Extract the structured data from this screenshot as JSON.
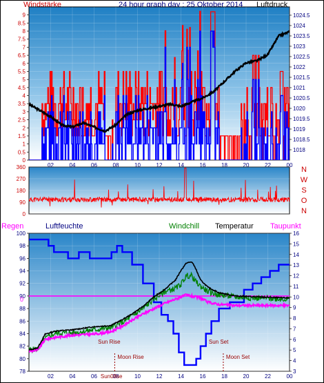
{
  "title": "24 hour graph day : 25 Oktober 2014",
  "colors": {
    "wind": "#ff0000",
    "gust": "#0000ff",
    "pressure": "#000000",
    "direction": "#ff0000",
    "humidity": "#0000ff",
    "windchill": "#008000",
    "temperature": "#000000",
    "dewpoint": "#ff00ff",
    "rain": "#ff00ff",
    "label_red": "#cc0000",
    "axis_blue": "#000080"
  },
  "chart_data": [
    {
      "type": "line",
      "name": "wind-pressure",
      "left_label": "Windstärke",
      "right_label": "Luftdruck",
      "y_left": {
        "min": 0,
        "max": 9.5,
        "ticks": [
          "0",
          "0.5",
          "1",
          "1.5",
          "2",
          "2.5",
          "3",
          "3.5",
          "4",
          "4.5",
          "5",
          "5.5",
          "6",
          "6.5",
          "7",
          "7.5",
          "8",
          "8.5",
          "9"
        ]
      },
      "y_right": {
        "min": 1017.5,
        "max": 1024.9,
        "ticks": [
          "1018",
          "1018.5",
          "1019",
          "1019.5",
          "1020",
          "1020.5",
          "1021",
          "1021.5",
          "1022",
          "1022.5",
          "1023",
          "1023.5",
          "1024",
          "1024.5"
        ]
      },
      "x": {
        "min": 0,
        "max": 24,
        "ticks": [
          "02",
          "04",
          "06",
          "08",
          "10",
          "12",
          "14",
          "16",
          "18",
          "20",
          "22",
          "00"
        ]
      },
      "pressure": [
        [
          0,
          1020.2
        ],
        [
          1,
          1019.9
        ],
        [
          2,
          1019.6
        ],
        [
          3,
          1019.2
        ],
        [
          4,
          1019.1
        ],
        [
          5,
          1019.3
        ],
        [
          6,
          1019.1
        ],
        [
          7,
          1018.9
        ],
        [
          8,
          1019.2
        ],
        [
          9,
          1019.7
        ],
        [
          10,
          1019.9
        ],
        [
          11,
          1020.0
        ],
        [
          12,
          1020.1
        ],
        [
          13,
          1020.2
        ],
        [
          14,
          1020.1
        ],
        [
          15,
          1020.3
        ],
        [
          16,
          1020.5
        ],
        [
          17,
          1020.8
        ],
        [
          18,
          1021.3
        ],
        [
          19,
          1021.8
        ],
        [
          20,
          1022.2
        ],
        [
          21,
          1022.3
        ],
        [
          22,
          1022.6
        ],
        [
          23,
          1023.5
        ],
        [
          24,
          1023.7
        ]
      ]
    },
    {
      "type": "scatter",
      "name": "wind-direction",
      "right_labels": [
        "N",
        "W",
        "S",
        "O",
        "N"
      ],
      "y": {
        "min": 0,
        "max": 360,
        "ticks": [
          "0",
          "90",
          "180",
          "270",
          "360"
        ]
      },
      "x": {
        "min": 0,
        "max": 24
      },
      "typical_direction": 110
    },
    {
      "type": "line",
      "name": "temperature-humidity",
      "labels": {
        "rain": "Regen",
        "humidity": "Luftfeuchte",
        "windchill": "Windchill",
        "temperature": "Temperatur",
        "dewpoint": "Taupunkt"
      },
      "y_left": {
        "min": 78,
        "max": 100,
        "ticks": [
          "78",
          "80",
          "82",
          "84",
          "86",
          "88",
          "90",
          "92",
          "94",
          "96",
          "98",
          "100"
        ]
      },
      "y_right": {
        "min": 3,
        "max": 16,
        "ticks": [
          "3",
          "4",
          "5",
          "6",
          "7",
          "8",
          "9",
          "10",
          "11",
          "12",
          "13",
          "14",
          "15",
          "16"
        ]
      },
      "rain_axis_label": "0",
      "x": {
        "min": 0,
        "max": 24,
        "ticks": [
          "02",
          "04",
          "06",
          "08",
          "10",
          "12",
          "14",
          "16",
          "18",
          "20",
          "22",
          "00"
        ]
      },
      "events": {
        "sun_rise": {
          "label": "Sun Rise",
          "hour": 7.5
        },
        "moon_rise": {
          "label": "Moon Rise",
          "hour": 7.9
        },
        "sun_set": {
          "label": "Sun Set",
          "hour": 17.2
        },
        "moon_set": {
          "label": "Moon Set",
          "hour": 17.9
        },
        "sun_label_short": "Sun08se"
      },
      "humidity": [
        [
          0,
          99
        ],
        [
          1.7,
          99
        ],
        [
          1.8,
          98
        ],
        [
          2.3,
          97
        ],
        [
          3.5,
          97
        ],
        [
          3.6,
          96
        ],
        [
          4.5,
          96
        ],
        [
          4.6,
          97
        ],
        [
          5.5,
          97
        ],
        [
          5.6,
          96
        ],
        [
          7.5,
          96
        ],
        [
          7.6,
          97
        ],
        [
          8,
          97
        ],
        [
          8.1,
          98
        ],
        [
          8.5,
          98
        ],
        [
          8.6,
          97
        ],
        [
          9.5,
          95
        ],
        [
          10.5,
          92
        ],
        [
          11.5,
          89
        ],
        [
          12.2,
          87
        ],
        [
          12.8,
          86
        ],
        [
          13.3,
          84
        ],
        [
          13.8,
          81
        ],
        [
          14.3,
          79
        ],
        [
          15,
          79
        ],
        [
          15.4,
          80
        ],
        [
          15.8,
          82
        ],
        [
          16.3,
          84
        ],
        [
          16.8,
          86
        ],
        [
          17.5,
          88
        ],
        [
          18.5,
          89
        ],
        [
          19.2,
          89
        ],
        [
          19.8,
          91
        ],
        [
          20.6,
          92
        ],
        [
          21.4,
          93
        ],
        [
          22.2,
          94
        ],
        [
          23,
          95
        ],
        [
          24,
          95
        ]
      ],
      "temperature": [
        [
          0,
          5.0
        ],
        [
          0.8,
          5.2
        ],
        [
          1.5,
          6.5
        ],
        [
          2.5,
          6.8
        ],
        [
          4,
          6.9
        ],
        [
          6,
          7.2
        ],
        [
          7.5,
          7.3
        ],
        [
          8.5,
          7.8
        ],
        [
          9.5,
          8.4
        ],
        [
          10.5,
          9.1
        ],
        [
          11.5,
          10.0
        ],
        [
          12.5,
          10.7
        ],
        [
          13.5,
          11.6
        ],
        [
          14,
          12.5
        ],
        [
          14.5,
          13.2
        ],
        [
          15,
          13.3
        ],
        [
          15.3,
          12.8
        ],
        [
          15.8,
          11.6
        ],
        [
          16.5,
          10.9
        ],
        [
          17.5,
          10.4
        ],
        [
          19,
          10.1
        ],
        [
          21,
          10.0
        ],
        [
          24,
          9.9
        ]
      ],
      "windchill": [
        [
          0,
          5.0
        ],
        [
          0.8,
          5.1
        ],
        [
          1.5,
          6.1
        ],
        [
          2.5,
          6.6
        ],
        [
          4,
          6.6
        ],
        [
          6,
          6.9
        ],
        [
          7.5,
          7.1
        ],
        [
          8.5,
          7.5
        ],
        [
          9.5,
          8.2
        ],
        [
          10.5,
          8.9
        ],
        [
          11.5,
          9.8
        ],
        [
          12.5,
          10.5
        ],
        [
          13.5,
          10.8
        ],
        [
          14,
          11.2
        ],
        [
          14.5,
          12.0
        ],
        [
          15,
          12.0
        ],
        [
          15.3,
          11.5
        ],
        [
          15.8,
          11.0
        ],
        [
          16.5,
          10.5
        ],
        [
          17.5,
          10.2
        ],
        [
          19,
          10.0
        ],
        [
          21,
          9.9
        ],
        [
          24,
          9.8
        ]
      ],
      "dewpoint": [
        [
          0,
          4.9
        ],
        [
          0.8,
          5.0
        ],
        [
          1.5,
          6.0
        ],
        [
          2.5,
          6.2
        ],
        [
          4,
          6.4
        ],
        [
          6,
          6.5
        ],
        [
          7.5,
          6.7
        ],
        [
          8.5,
          7.2
        ],
        [
          9.5,
          7.8
        ],
        [
          10.5,
          8.4
        ],
        [
          11.5,
          8.9
        ],
        [
          12.5,
          9.4
        ],
        [
          13.5,
          9.8
        ],
        [
          14.5,
          10.2
        ],
        [
          15.3,
          10.0
        ],
        [
          15.8,
          9.9
        ],
        [
          16.5,
          9.5
        ],
        [
          17.5,
          9.3
        ],
        [
          19,
          9.2
        ],
        [
          21,
          9.2
        ],
        [
          24,
          9.2
        ]
      ],
      "rain": [
        [
          0,
          0
        ],
        [
          24,
          0
        ]
      ]
    }
  ]
}
